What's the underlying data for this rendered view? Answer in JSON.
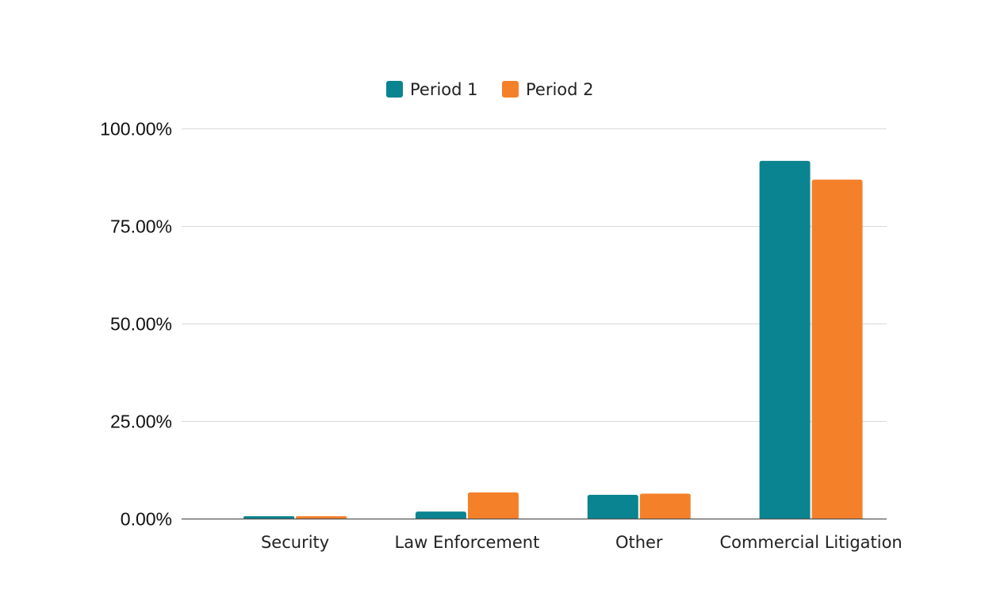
{
  "chart_data": {
    "type": "bar",
    "title": "",
    "xlabel": "",
    "ylabel": "",
    "categories": [
      "Security",
      "Law Enforcement",
      "Other",
      "Commercial Litigation"
    ],
    "series": [
      {
        "name": "Period 1",
        "color": "#0a8490",
        "values": [
          0.6,
          1.8,
          6.1,
          91.7
        ]
      },
      {
        "name": "Period 2",
        "color": "#f5802a",
        "values": [
          0.6,
          6.7,
          6.4,
          86.9
        ]
      }
    ],
    "ylim": [
      0,
      100
    ],
    "yticks": [
      0,
      25,
      50,
      75,
      100
    ],
    "ytick_labels": [
      "0.00%",
      "25.00%",
      "50.00%",
      "75.00%",
      "100.00%"
    ],
    "grid": true,
    "legend_position": "top-center"
  }
}
